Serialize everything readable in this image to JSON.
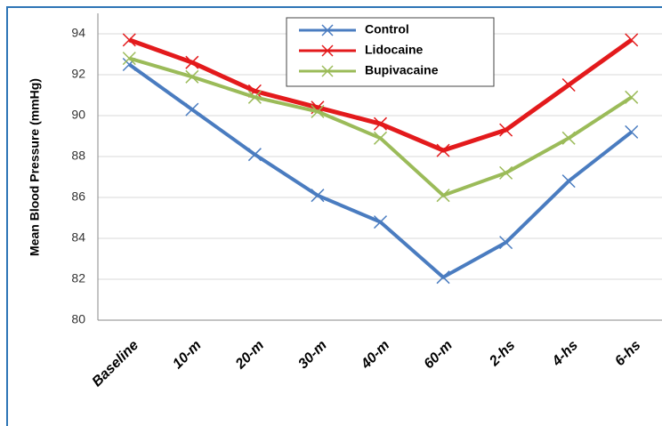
{
  "chart_data": {
    "type": "line",
    "y_label": "Mean Blood Pressure (mmHg)",
    "categories": [
      "Baseline",
      "10-m",
      "20-m",
      "30-m",
      "40-m",
      "60-m",
      "2-hs",
      "4-hs",
      "6-hs"
    ],
    "series": [
      {
        "name": "Control",
        "color": "#4a7cc0",
        "values": [
          92.5,
          90.3,
          88.1,
          86.1,
          84.8,
          82.1,
          83.8,
          86.8,
          89.2
        ]
      },
      {
        "name": "Lidocaine",
        "color": "#e31a1c",
        "values": [
          93.7,
          92.6,
          91.2,
          90.4,
          89.6,
          88.3,
          89.3,
          91.5,
          93.7
        ]
      },
      {
        "name": "Bupivacaine",
        "color": "#9bbb59",
        "values": [
          92.8,
          91.9,
          90.9,
          90.2,
          88.9,
          86.1,
          87.2,
          88.9,
          90.9
        ]
      }
    ],
    "ylim": [
      80,
      95
    ],
    "yticks": [
      80,
      82,
      84,
      86,
      88,
      90,
      92,
      94
    ],
    "grid": true,
    "legend": "top"
  }
}
